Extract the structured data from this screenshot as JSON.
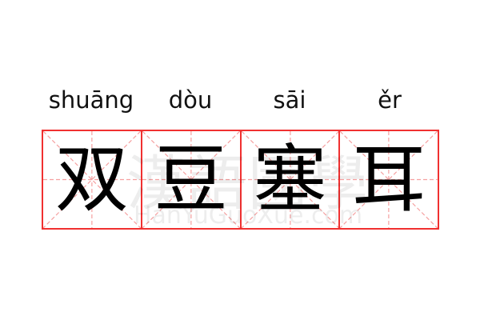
{
  "words": [
    {
      "pinyin": "shuāng",
      "char": "双"
    },
    {
      "pinyin": "dòu",
      "char": "豆"
    },
    {
      "pinyin": "sāi",
      "char": "塞"
    },
    {
      "pinyin": "ěr",
      "char": "耳"
    }
  ],
  "watermark": {
    "chars": "漢語國學",
    "latin": "HanYuGuoXue.com"
  },
  "colors": {
    "grid_border": "#f03030",
    "guide_lines": "#f5a0a0",
    "text": "#000000"
  }
}
